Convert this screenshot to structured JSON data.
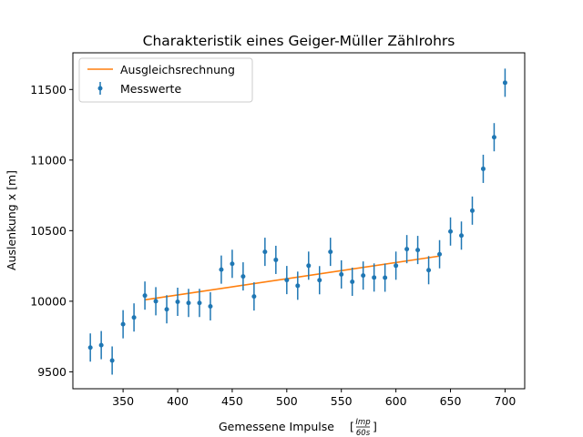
{
  "chart_data": {
    "type": "scatter",
    "title": "Charakteristik eines Geiger-Müller Zählrohrs",
    "xlabel": "Gemessene Impulse",
    "xlabel_unit_num": "Imp",
    "xlabel_unit_den": "60s",
    "ylabel": "Auslenkung x [m]",
    "xlim": [
      304,
      718
    ],
    "ylim": [
      9380,
      11760
    ],
    "xticks": [
      350,
      400,
      450,
      500,
      550,
      600,
      650,
      700
    ],
    "yticks": [
      9500,
      10000,
      10500,
      11000,
      11500
    ],
    "grid": false,
    "legend_position": "top-left",
    "series": [
      {
        "name": "Messwerte",
        "kind": "errorbar",
        "color": "#1f77b4",
        "x": [
          320,
          330,
          340,
          350,
          360,
          370,
          380,
          390,
          400,
          410,
          420,
          430,
          440,
          450,
          460,
          470,
          480,
          490,
          500,
          510,
          520,
          530,
          540,
          550,
          560,
          570,
          580,
          590,
          600,
          610,
          620,
          630,
          640,
          650,
          660,
          670,
          680,
          690,
          700
        ],
        "y": [
          9672,
          9689,
          9580,
          9837,
          9885,
          10040,
          10000,
          9943,
          9996,
          9988,
          9988,
          9964,
          10224,
          10265,
          10176,
          10034,
          10350,
          10293,
          10150,
          10110,
          10252,
          10149,
          10350,
          10190,
          10138,
          10182,
          10168,
          10167,
          10252,
          10369,
          10363,
          10220,
          10333,
          10494,
          10465,
          10642,
          10938,
          11162,
          11548
        ],
        "yerr": 100
      },
      {
        "name": "Ausgleichsrechnung",
        "kind": "line",
        "color": "#ff7f0e",
        "x": [
          370,
          640
        ],
        "y": [
          10010,
          10320
        ]
      }
    ]
  }
}
